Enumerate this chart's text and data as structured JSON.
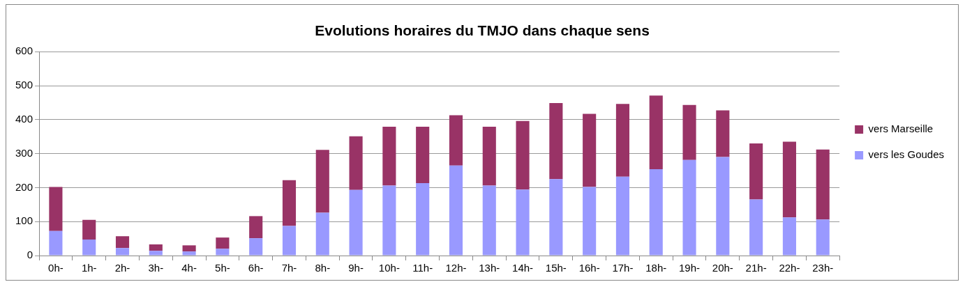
{
  "chart_data": {
    "type": "bar",
    "title": "Evolutions horaires du TMJO dans chaque sens",
    "stacked": true,
    "categories": [
      "0h-",
      "1h-",
      "2h-",
      "3h-",
      "4h-",
      "5h-",
      "6h-",
      "7h-",
      "8h-",
      "9h-",
      "10h-",
      "11h-",
      "12h-",
      "13h-",
      "14h-",
      "15h-",
      "16h-",
      "17h-",
      "18h-",
      "19h-",
      "20h-",
      "21h-",
      "22h-",
      "23h-"
    ],
    "series": [
      {
        "name": "vers les Goudes",
        "color": "#9999ff",
        "values": [
          72,
          47,
          22,
          14,
          12,
          20,
          51,
          87,
          126,
          193,
          206,
          213,
          265,
          206,
          194,
          225,
          202,
          232,
          254,
          281,
          290,
          165,
          112,
          106
        ]
      },
      {
        "name": "vers Marseille",
        "color": "#993366",
        "values": [
          130,
          58,
          35,
          19,
          18,
          33,
          65,
          135,
          185,
          158,
          173,
          166,
          148,
          173,
          202,
          224,
          215,
          214,
          217,
          162,
          137,
          165,
          223,
          206
        ]
      }
    ],
    "ylim": [
      0,
      600
    ],
    "yticks": [
      0,
      100,
      200,
      300,
      400,
      500,
      600
    ],
    "grid": "y",
    "legend": "right"
  }
}
